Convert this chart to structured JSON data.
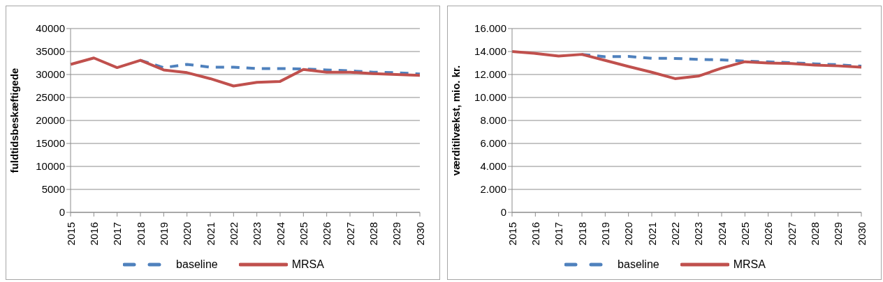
{
  "chart_data": [
    {
      "type": "line",
      "ylabel": "fuldtidsbeskæftigede",
      "categories": [
        "2015",
        "2016",
        "2017",
        "2018",
        "2019",
        "2020",
        "2021",
        "2022",
        "2023",
        "2024",
        "2025",
        "2026",
        "2027",
        "2028",
        "2029",
        "2030"
      ],
      "series": [
        {
          "name": "baseline",
          "color": "#4f81bd",
          "line_style": "dashed",
          "values": [
            null,
            null,
            null,
            33100,
            31500,
            32200,
            31600,
            31600,
            31300,
            31300,
            31200,
            31000,
            30800,
            30500,
            30400,
            30100
          ]
        },
        {
          "name": "MRSA",
          "color": "#c0504d",
          "line_style": "solid",
          "values": [
            32200,
            33600,
            31500,
            33100,
            31000,
            30400,
            29100,
            27500,
            28300,
            28500,
            31100,
            30500,
            30500,
            30200,
            30000,
            29800
          ]
        }
      ],
      "ylim": [
        0,
        40000
      ],
      "yticks": [
        0,
        5000,
        10000,
        15000,
        20000,
        25000,
        30000,
        35000,
        40000
      ],
      "grid": "y",
      "legend": "bottom"
    },
    {
      "type": "line",
      "ylabel": "værditilvækst, mio. kr.",
      "categories": [
        "2015",
        "2016",
        "2017",
        "2018",
        "2019",
        "2020",
        "2021",
        "2022",
        "2023",
        "2024",
        "2025",
        "2026",
        "2027",
        "2028",
        "2029",
        "2030"
      ],
      "series": [
        {
          "name": "baseline",
          "color": "#4f81bd",
          "line_style": "dashed",
          "values": [
            null,
            null,
            null,
            13750,
            13550,
            13570,
            13410,
            13400,
            13320,
            13270,
            13160,
            13100,
            13020,
            12930,
            12850,
            12720
          ]
        },
        {
          "name": "MRSA",
          "color": "#c0504d",
          "line_style": "solid",
          "values": [
            14000,
            13840,
            13610,
            13750,
            13230,
            12700,
            12200,
            11640,
            11860,
            12550,
            13110,
            13000,
            12950,
            12820,
            12750,
            12640
          ]
        }
      ],
      "ylim": [
        0,
        16000
      ],
      "yticks": [
        0,
        {
          "value": 2000,
          "label": "2.000"
        },
        {
          "value": 4000,
          "label": "4.000"
        },
        {
          "value": 6000,
          "label": "6.000"
        },
        {
          "value": 8000,
          "label": "8.000"
        },
        {
          "value": 10000,
          "label": "10.000"
        },
        {
          "value": 12000,
          "label": "12.000"
        },
        {
          "value": 14000,
          "label": "14.000"
        },
        {
          "value": 16000,
          "label": "16.000"
        }
      ],
      "grid": "y",
      "legend": "bottom"
    }
  ]
}
